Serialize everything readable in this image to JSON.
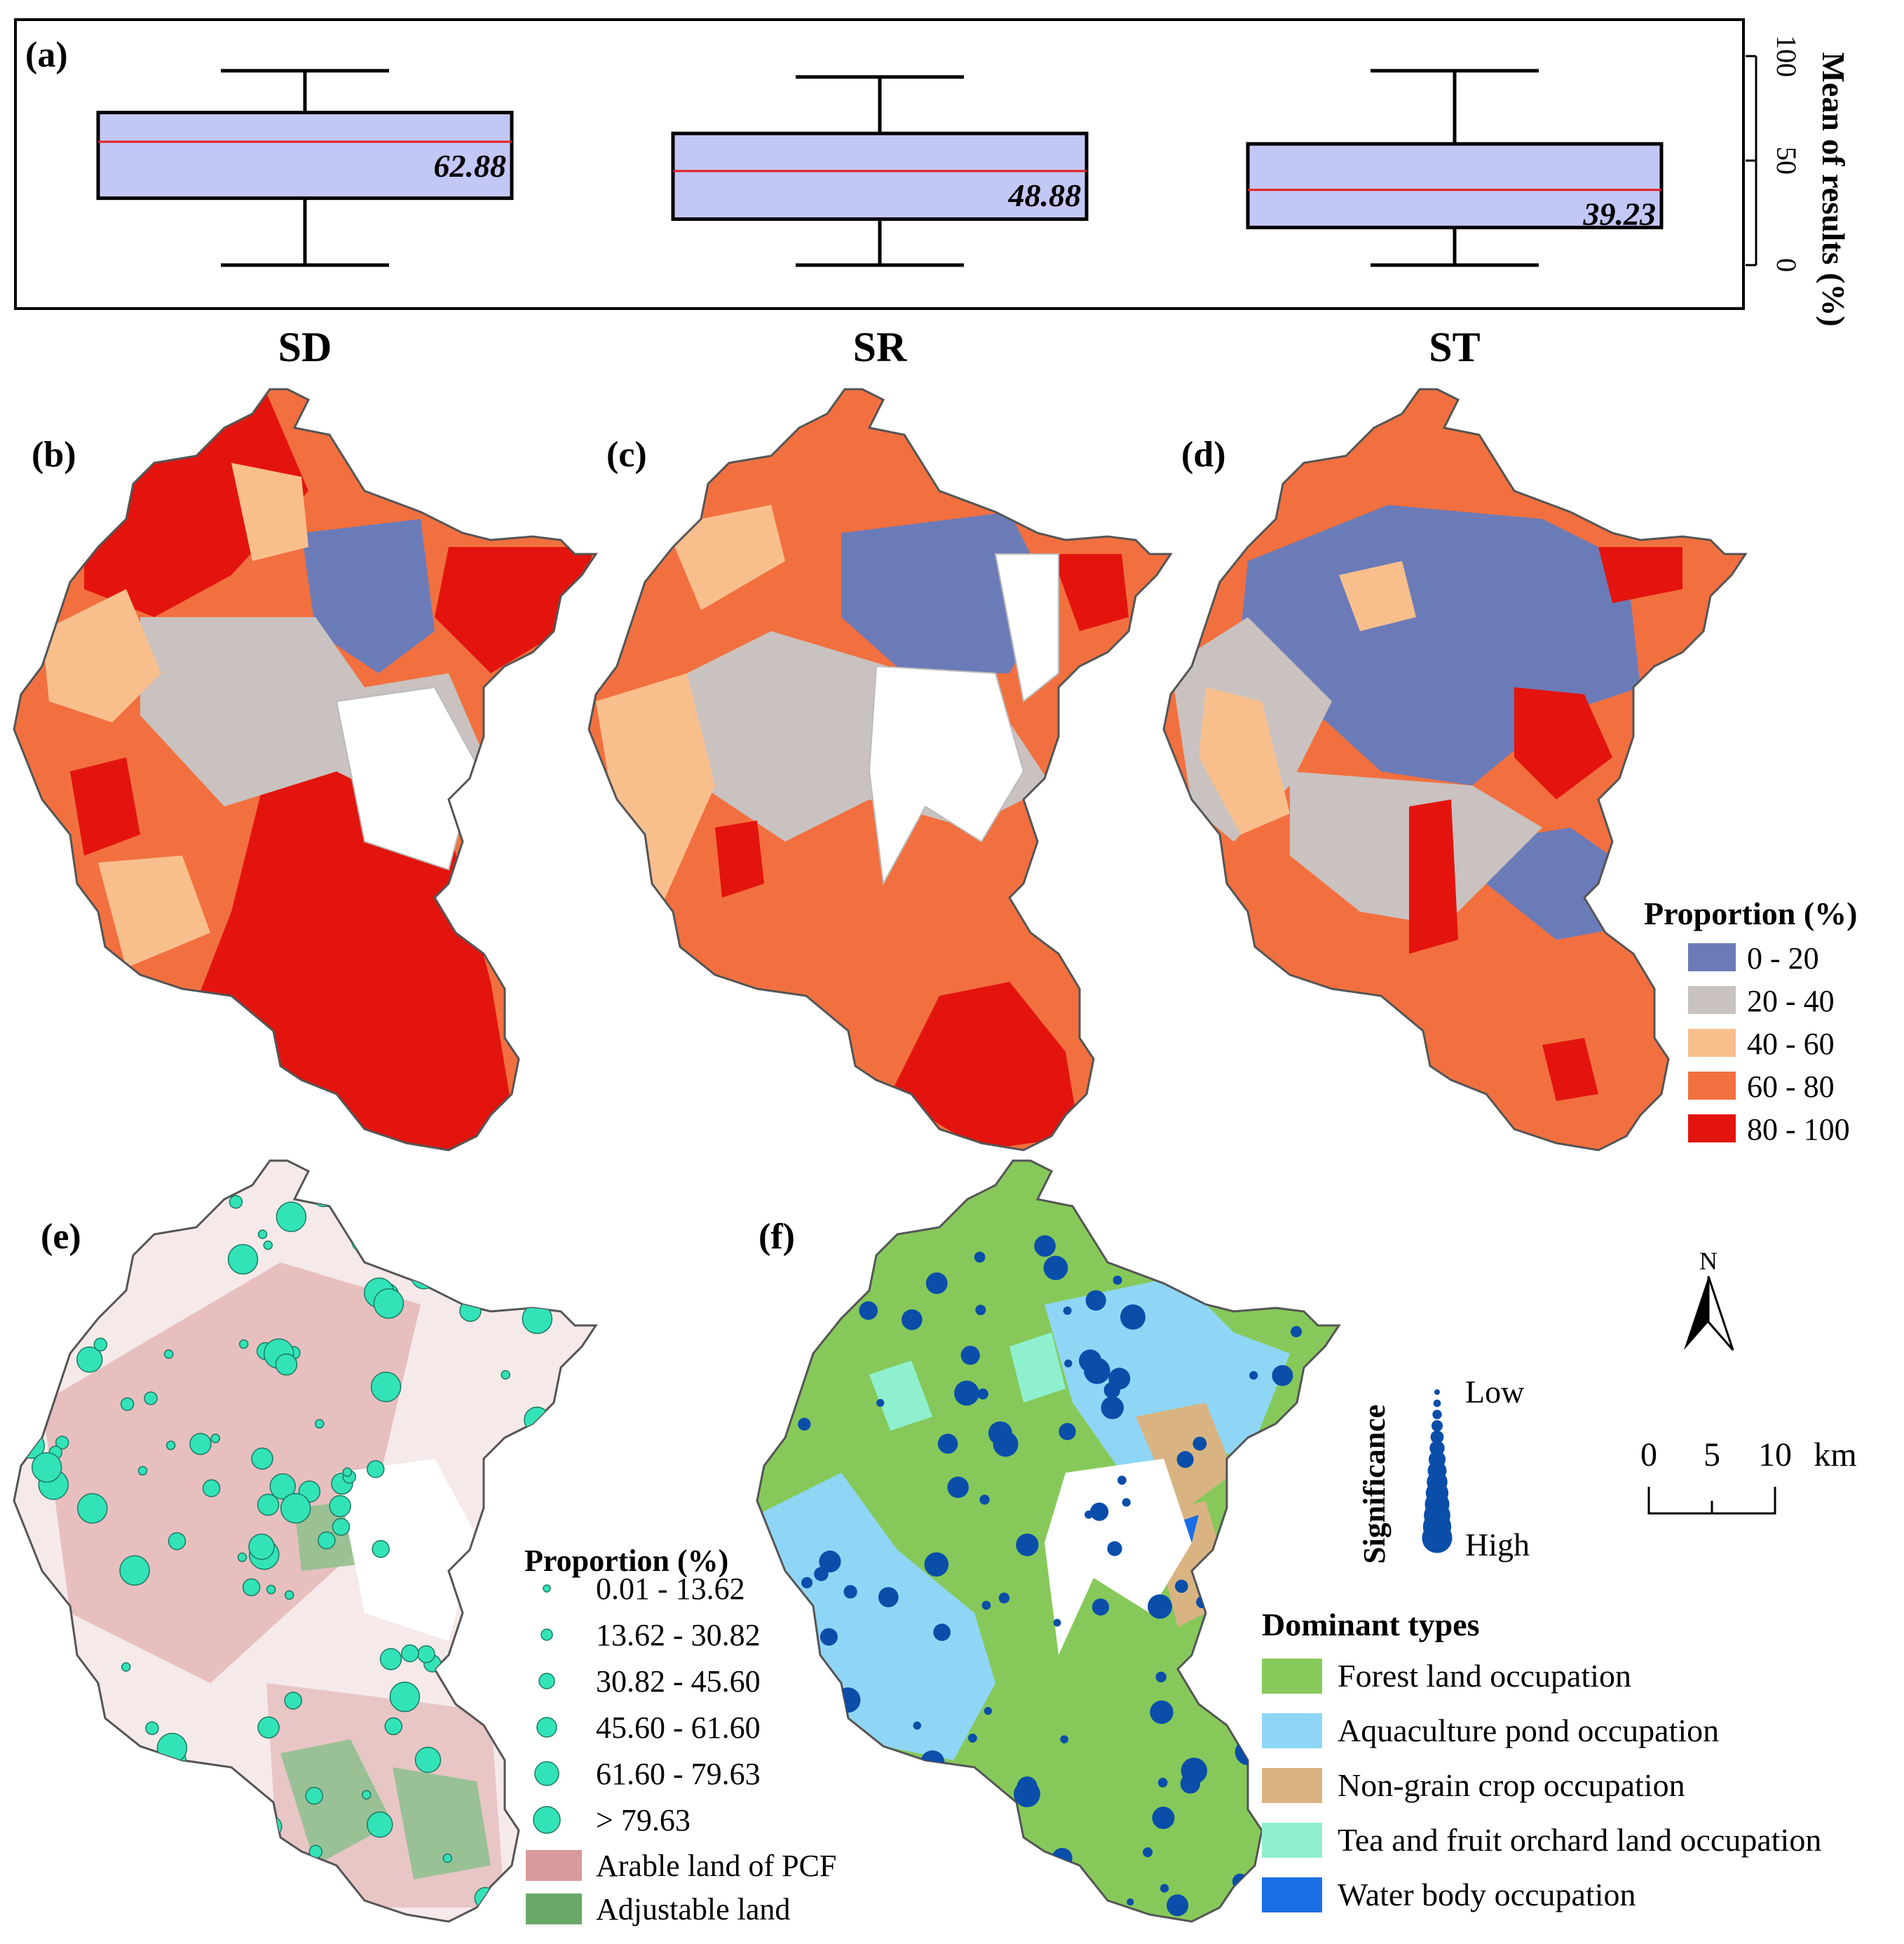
{
  "panel_labels": {
    "a": "(a)",
    "b": "(b)",
    "c": "(c)",
    "d": "(d)",
    "e": "(e)",
    "f": "(f)"
  },
  "chart_data": {
    "type": "box",
    "title": "",
    "ylabel": "Mean of results (%)",
    "ylim": [
      0,
      100
    ],
    "yticks": [
      "0",
      "50",
      "100"
    ],
    "categories": [
      "SD",
      "SR",
      "ST"
    ],
    "boxes": [
      {
        "name": "SD",
        "min": 0,
        "q1": 32,
        "median": 59,
        "mean": 62.88,
        "q3": 73,
        "max": 93,
        "mean_label": "62.88"
      },
      {
        "name": "SR",
        "min": 0,
        "q1": 22,
        "median": 45,
        "mean": 48.88,
        "q3": 63,
        "max": 90,
        "mean_label": "48.88"
      },
      {
        "name": "ST",
        "min": 0,
        "q1": 18,
        "median": 36,
        "mean": 39.23,
        "q3": 58,
        "max": 93,
        "mean_label": "39.23"
      }
    ]
  },
  "proportion_legend": {
    "title": "Proportion (%)",
    "classes": [
      {
        "label": "0 - 20",
        "color": "#6b7bb8"
      },
      {
        "label": "20 - 40",
        "color": "#c9c2c0"
      },
      {
        "label": "40 - 60",
        "color": "#f8bf8d"
      },
      {
        "label": "60 - 80",
        "color": "#f2703f"
      },
      {
        "label": "80 - 100",
        "color": "#e3140e"
      }
    ]
  },
  "points_legend": {
    "title": "Proportion (%)",
    "classes": [
      "0.01 - 13.62",
      "13.62 - 30.82",
      "30.82 - 45.60",
      "45.60 - 61.60",
      "61.60 - 79.63",
      "> 79.63"
    ],
    "point_color": "#33e3b8",
    "arable": {
      "label": "Arable land of PCF",
      "color": "#d89a9a"
    },
    "adjustable": {
      "label": "Adjustable land",
      "color": "#6aa86a"
    }
  },
  "significance_legend": {
    "title": "Significance",
    "low": "Low",
    "high": "High",
    "color": "#0a4eaa"
  },
  "dominant_legend": {
    "title": "Dominant types",
    "classes": [
      {
        "label": "Forest land occupation",
        "color": "#86c95a"
      },
      {
        "label": "Aquaculture pond occupation",
        "color": "#8fd6f6"
      },
      {
        "label": "Non-grain crop occupation",
        "color": "#d9b482"
      },
      {
        "label": "Tea and fruit orchard land occupation",
        "color": "#8ff0d0"
      },
      {
        "label": "Water body occupation",
        "color": "#1b6fe6"
      }
    ]
  },
  "north": {
    "label": "N"
  },
  "scale_bar": {
    "labels": [
      "0",
      "5",
      "10"
    ],
    "unit": "km"
  }
}
